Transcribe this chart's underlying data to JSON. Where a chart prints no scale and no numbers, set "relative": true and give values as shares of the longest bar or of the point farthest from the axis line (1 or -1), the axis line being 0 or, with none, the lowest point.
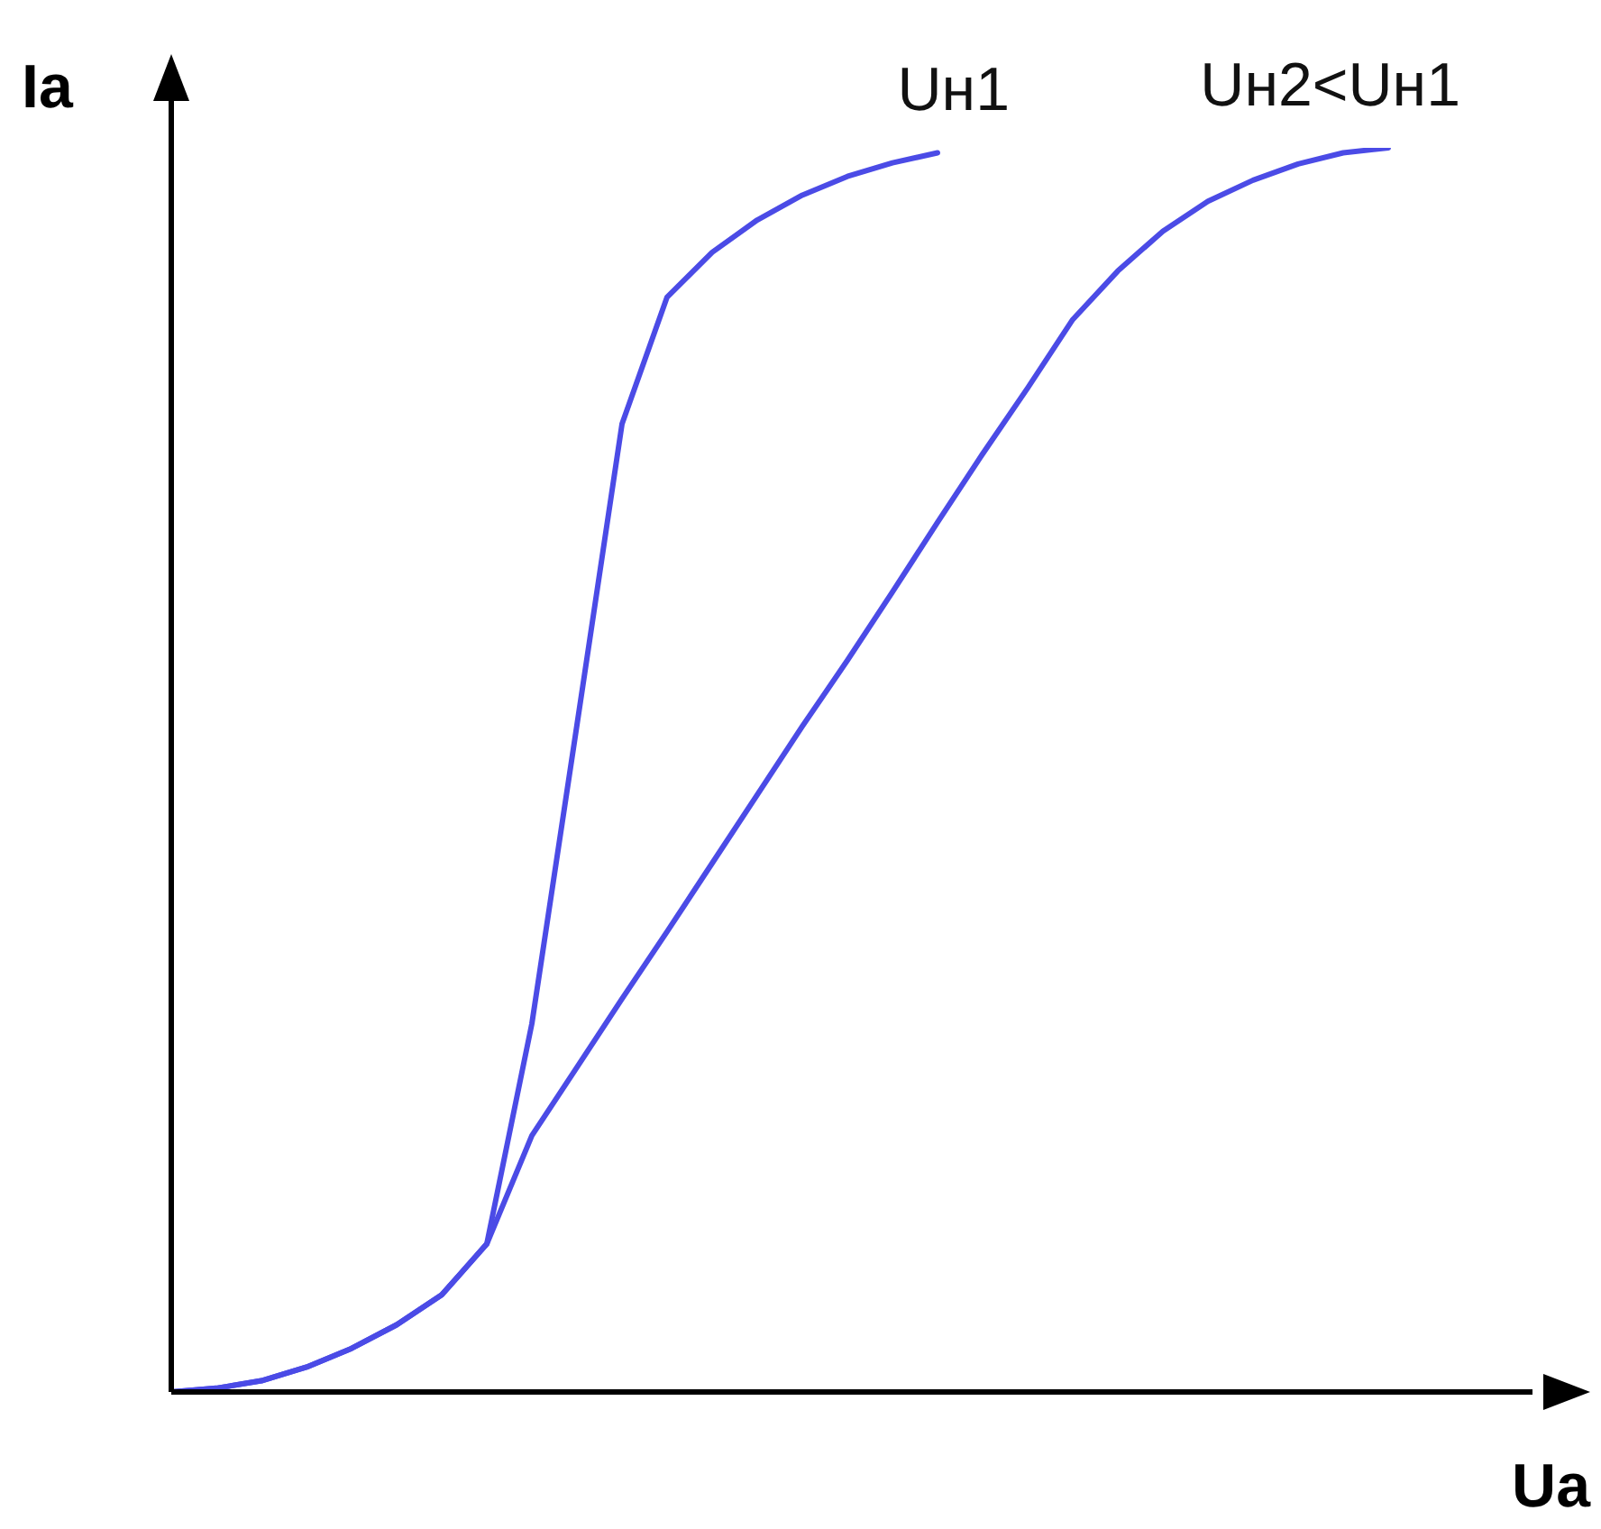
{
  "chart_data": {
    "type": "line",
    "relative": true,
    "xlabel": "Ua",
    "ylabel": "Ia",
    "marker": "none",
    "categories": [
      null,
      null,
      null,
      null,
      null,
      null,
      null,
      null,
      null,
      null,
      null,
      null,
      null,
      null,
      null,
      null,
      null,
      null,
      null,
      null,
      null,
      null,
      null,
      null,
      null,
      null,
      null,
      null,
      null,
      null,
      null,
      null
    ],
    "series": [
      {
        "name": "Uн1",
        "color": "#4b4be6",
        "values": [
          0,
          0.003,
          0.009,
          0.02,
          0.035,
          0.054,
          0.078,
          0.119,
          0.296,
          0.536,
          0.778,
          0.88,
          0.916,
          0.942,
          0.962,
          0.977,
          0.988,
          0.996,
          null,
          null,
          null,
          null,
          null,
          null,
          null,
          null,
          null,
          null,
          null,
          null,
          null,
          null
        ]
      },
      {
        "name": "Uн2<Uн1",
        "color": "#4b4be6",
        "values": [
          0,
          0.003,
          0.009,
          0.02,
          0.035,
          0.054,
          0.078,
          0.119,
          0.206,
          0.261,
          0.316,
          0.37,
          0.425,
          0.48,
          0.535,
          0.588,
          0.643,
          0.699,
          0.754,
          0.807,
          0.862,
          0.901,
          0.933,
          0.957,
          0.974,
          0.987,
          0.996,
          1,
          null,
          null,
          null,
          null
        ]
      }
    ]
  }
}
